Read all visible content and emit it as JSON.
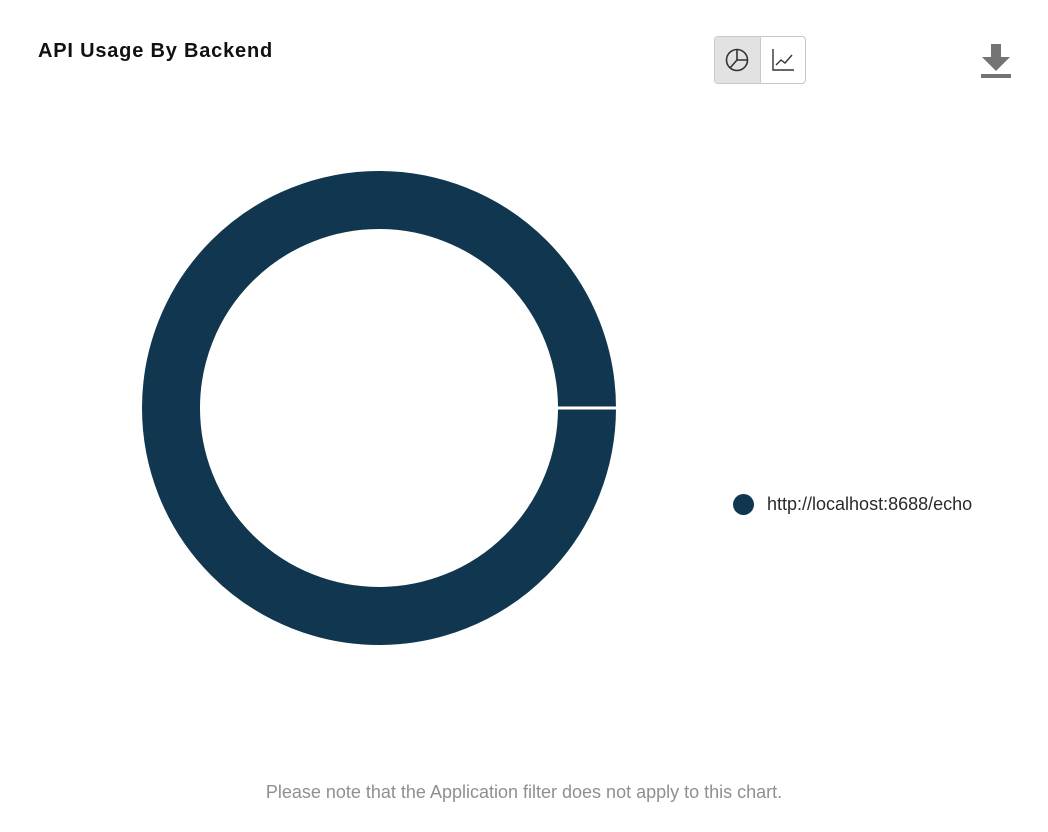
{
  "widget": {
    "title": "API Usage By Backend",
    "note": "Please note that the Application filter does not apply to this chart."
  },
  "toolbar": {
    "views": [
      {
        "icon": "pie-chart-icon",
        "active": true
      },
      {
        "icon": "line-chart-icon",
        "active": false
      }
    ],
    "download_icon": "download-icon"
  },
  "colors": {
    "series": "#10374F",
    "active_toggle": "#E2E2E2",
    "note_text": "#8F8F8F"
  },
  "chart_data": {
    "type": "pie",
    "variant": "donut",
    "legend_position": "right",
    "slices": [
      {
        "label": "http://localhost:8688/echo",
        "value": 100,
        "color": "#10374F"
      }
    ]
  }
}
